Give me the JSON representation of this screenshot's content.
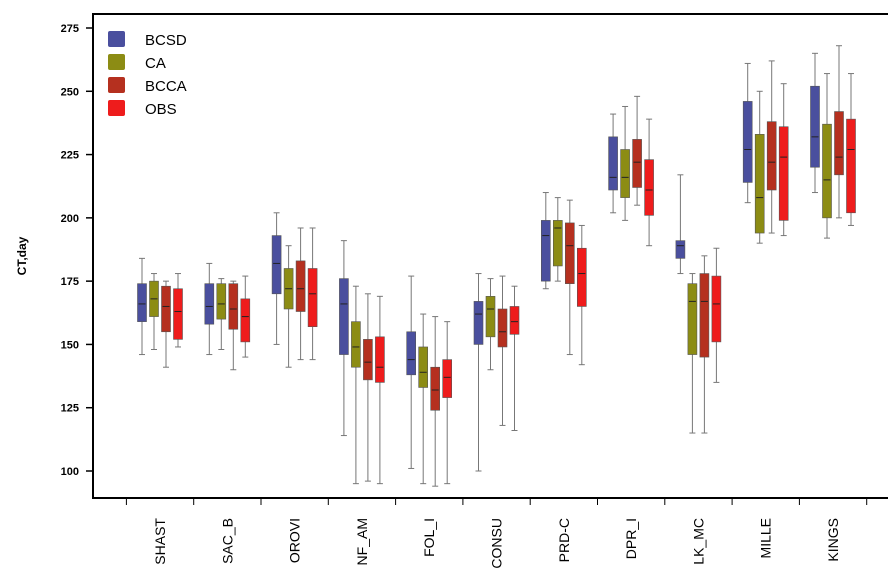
{
  "chart_data": {
    "type": "boxplot",
    "ylabel": "CT,day",
    "xlabel": "",
    "ylim": [
      90,
      278
    ],
    "y_ticks": [
      100,
      125,
      150,
      175,
      200,
      225,
      250,
      275
    ],
    "y_tick_labels": [
      "100",
      "125",
      "150",
      "175",
      "200",
      "225",
      "250",
      "275"
    ],
    "legend_position": "top-left",
    "categories": [
      "SHAST",
      "SAC_B",
      "OROVI",
      "NF_AM",
      "FOL_I",
      "CONSU",
      "PRD-C",
      "DPR_I",
      "LK_MC",
      "MILLE",
      "KINGS"
    ],
    "series": [
      {
        "name": "BCSD",
        "color": "#4a4f9e",
        "boxes": [
          {
            "min": 146,
            "q1": 159,
            "median": 166,
            "q3": 174,
            "max": 184
          },
          {
            "min": 146,
            "q1": 158,
            "median": 165,
            "q3": 174,
            "max": 182
          },
          {
            "min": 150,
            "q1": 170,
            "median": 182,
            "q3": 193,
            "max": 202
          },
          {
            "min": 114,
            "q1": 146,
            "median": 166,
            "q3": 176,
            "max": 191
          },
          {
            "min": 101,
            "q1": 138,
            "median": 144,
            "q3": 155,
            "max": 177
          },
          {
            "min": 100,
            "q1": 150,
            "median": 162,
            "q3": 167,
            "max": 178
          },
          {
            "min": 172,
            "q1": 175,
            "median": 193,
            "q3": 199,
            "max": 210
          },
          {
            "min": 202,
            "q1": 211,
            "median": 216,
            "q3": 232,
            "max": 241
          },
          {
            "min": 178,
            "q1": 184,
            "median": 189,
            "q3": 191,
            "max": 217
          },
          {
            "min": 206,
            "q1": 214,
            "median": 227,
            "q3": 246,
            "max": 261
          },
          {
            "min": 210,
            "q1": 220,
            "median": 232,
            "q3": 252,
            "max": 265
          }
        ]
      },
      {
        "name": "CA",
        "color": "#8c8c14",
        "boxes": [
          {
            "min": 148,
            "q1": 161,
            "median": 168,
            "q3": 175,
            "max": 178
          },
          {
            "min": 148,
            "q1": 160,
            "median": 166,
            "q3": 174,
            "max": 176
          },
          {
            "min": 141,
            "q1": 164,
            "median": 172,
            "q3": 180,
            "max": 189
          },
          {
            "min": 95,
            "q1": 141,
            "median": 149,
            "q3": 159,
            "max": 173
          },
          {
            "min": 95,
            "q1": 133,
            "median": 139,
            "q3": 149,
            "max": 162
          },
          {
            "min": 140,
            "q1": 153,
            "median": 164,
            "q3": 169,
            "max": 176
          },
          {
            "min": 175,
            "q1": 181,
            "median": 196,
            "q3": 199,
            "max": 208
          },
          {
            "min": 199,
            "q1": 208,
            "median": 216,
            "q3": 227,
            "max": 244
          },
          {
            "min": 115,
            "q1": 146,
            "median": 167,
            "q3": 174,
            "max": 178
          },
          {
            "min": 190,
            "q1": 194,
            "median": 208,
            "q3": 233,
            "max": 250
          },
          {
            "min": 192,
            "q1": 200,
            "median": 215,
            "q3": 237,
            "max": 257
          }
        ]
      },
      {
        "name": "BCCA",
        "color": "#b5301f",
        "boxes": [
          {
            "min": 141,
            "q1": 155,
            "median": 165,
            "q3": 173,
            "max": 175
          },
          {
            "min": 140,
            "q1": 156,
            "median": 164,
            "q3": 174,
            "max": 175
          },
          {
            "min": 144,
            "q1": 163,
            "median": 172,
            "q3": 183,
            "max": 196
          },
          {
            "min": 96,
            "q1": 136,
            "median": 143,
            "q3": 152,
            "max": 170
          },
          {
            "min": 94,
            "q1": 124,
            "median": 132,
            "q3": 141,
            "max": 161
          },
          {
            "min": 118,
            "q1": 149,
            "median": 155,
            "q3": 164,
            "max": 177
          },
          {
            "min": 146,
            "q1": 174,
            "median": 189,
            "q3": 198,
            "max": 207
          },
          {
            "min": 205,
            "q1": 212,
            "median": 222,
            "q3": 231,
            "max": 248
          },
          {
            "min": 115,
            "q1": 145,
            "median": 167,
            "q3": 178,
            "max": 185
          },
          {
            "min": 194,
            "q1": 211,
            "median": 222,
            "q3": 238,
            "max": 262
          },
          {
            "min": 200,
            "q1": 217,
            "median": 224,
            "q3": 242,
            "max": 268
          }
        ]
      },
      {
        "name": "OBS",
        "color": "#ee1c1c",
        "boxes": [
          {
            "min": 149,
            "q1": 152,
            "median": 163,
            "q3": 172,
            "max": 178
          },
          {
            "min": 145,
            "q1": 151,
            "median": 161,
            "q3": 168,
            "max": 177
          },
          {
            "min": 144,
            "q1": 157,
            "median": 170,
            "q3": 180,
            "max": 196
          },
          {
            "min": 95,
            "q1": 135,
            "median": 141,
            "q3": 153,
            "max": 169
          },
          {
            "min": 95,
            "q1": 129,
            "median": 137,
            "q3": 144,
            "max": 159
          },
          {
            "min": 116,
            "q1": 154,
            "median": 159,
            "q3": 165,
            "max": 173
          },
          {
            "min": 142,
            "q1": 165,
            "median": 178,
            "q3": 188,
            "max": 197
          },
          {
            "min": 189,
            "q1": 201,
            "median": 211,
            "q3": 223,
            "max": 239
          },
          {
            "min": 135,
            "q1": 151,
            "median": 166,
            "q3": 177,
            "max": 188
          },
          {
            "min": 193,
            "q1": 199,
            "median": 224,
            "q3": 236,
            "max": 253
          },
          {
            "min": 197,
            "q1": 202,
            "median": 227,
            "q3": 239,
            "max": 257
          }
        ]
      }
    ]
  }
}
